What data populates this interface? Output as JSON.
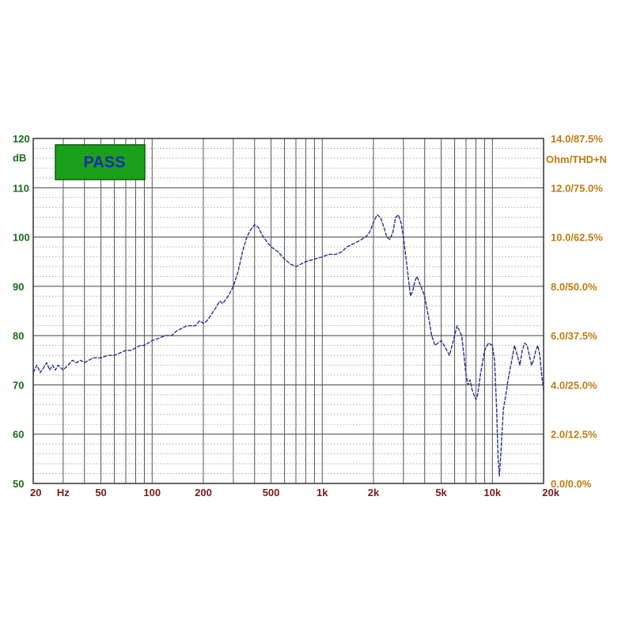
{
  "chart_data": {
    "type": "line",
    "x_scale": "log",
    "xlim": [
      20,
      20000
    ],
    "ylim": [
      50,
      120
    ],
    "y2lim": [
      0,
      14
    ],
    "grid": true,
    "pass_badge": "PASS",
    "left_axis": {
      "unit": "dB",
      "ticks": [
        {
          "value": 50,
          "label": "50"
        },
        {
          "value": 60,
          "label": "60"
        },
        {
          "value": 70,
          "label": "70"
        },
        {
          "value": 80,
          "label": "80"
        },
        {
          "value": 90,
          "label": "90"
        },
        {
          "value": 100,
          "label": "100"
        },
        {
          "value": 110,
          "label": "110"
        },
        {
          "value": 120,
          "label": "120"
        }
      ]
    },
    "right_axis": {
      "unit": "Ohm/THD+N",
      "ticks": [
        {
          "value": 0,
          "label": "0.0/0.0%"
        },
        {
          "value": 2,
          "label": "2.0/12.5%"
        },
        {
          "value": 4,
          "label": "4.0/25.0%"
        },
        {
          "value": 6,
          "label": "6.0/37.5%"
        },
        {
          "value": 8,
          "label": "8.0/50.0%"
        },
        {
          "value": 10,
          "label": "10.0/62.5%"
        },
        {
          "value": 12,
          "label": "12.0/75.0%"
        },
        {
          "value": 14,
          "label": "14.0/87.5%"
        }
      ]
    },
    "x_axis": {
      "unit": "Hz",
      "unit_position": 30,
      "ticks": [
        {
          "value": 20,
          "label": "20"
        },
        {
          "value": 50,
          "label": "50"
        },
        {
          "value": 100,
          "label": "100"
        },
        {
          "value": 200,
          "label": "200"
        },
        {
          "value": 500,
          "label": "500"
        },
        {
          "value": 1000,
          "label": "1k"
        },
        {
          "value": 2000,
          "label": "2k"
        },
        {
          "value": 5000,
          "label": "5k"
        },
        {
          "value": 10000,
          "label": "10k"
        },
        {
          "value": 20000,
          "label": "20k"
        }
      ]
    },
    "colors": {
      "line": "#2a2f8a",
      "grid": "#555555",
      "left_ticks": "#1a6b1a",
      "right_ticks": "#c07a10",
      "bottom_ticks": "#7a1a1a",
      "badge_fill": "#1aa01a",
      "badge_text": "#1a2bb0"
    },
    "series": [
      {
        "points": [
          [
            20,
            72.5
          ],
          [
            21,
            74
          ],
          [
            22,
            72.5
          ],
          [
            23,
            73.5
          ],
          [
            24,
            74.5
          ],
          [
            25,
            73
          ],
          [
            26,
            74
          ],
          [
            27,
            73
          ],
          [
            28,
            74
          ],
          [
            30,
            73
          ],
          [
            32,
            74
          ],
          [
            34,
            75
          ],
          [
            36,
            74.5
          ],
          [
            38,
            75
          ],
          [
            40,
            74.5
          ],
          [
            45,
            75.5
          ],
          [
            50,
            75.5
          ],
          [
            55,
            76
          ],
          [
            60,
            76
          ],
          [
            65,
            76.5
          ],
          [
            70,
            77
          ],
          [
            75,
            77
          ],
          [
            80,
            77.5
          ],
          [
            85,
            78
          ],
          [
            90,
            78
          ],
          [
            100,
            79
          ],
          [
            110,
            79.5
          ],
          [
            120,
            80
          ],
          [
            130,
            80
          ],
          [
            140,
            81
          ],
          [
            150,
            81.5
          ],
          [
            160,
            82
          ],
          [
            170,
            82
          ],
          [
            180,
            82
          ],
          [
            190,
            83
          ],
          [
            200,
            82.5
          ],
          [
            210,
            83
          ],
          [
            220,
            84
          ],
          [
            240,
            86
          ],
          [
            250,
            87
          ],
          [
            260,
            86.5
          ],
          [
            280,
            88
          ],
          [
            300,
            90
          ],
          [
            320,
            93
          ],
          [
            340,
            97
          ],
          [
            360,
            100
          ],
          [
            380,
            101.5
          ],
          [
            400,
            102.5
          ],
          [
            420,
            102
          ],
          [
            450,
            100
          ],
          [
            500,
            98
          ],
          [
            550,
            97
          ],
          [
            600,
            95.5
          ],
          [
            650,
            94.5
          ],
          [
            700,
            94
          ],
          [
            750,
            94.5
          ],
          [
            800,
            95
          ],
          [
            900,
            95.5
          ],
          [
            1000,
            96
          ],
          [
            1100,
            96.5
          ],
          [
            1200,
            96.5
          ],
          [
            1300,
            97
          ],
          [
            1400,
            98
          ],
          [
            1500,
            98.5
          ],
          [
            1600,
            99
          ],
          [
            1700,
            99.5
          ],
          [
            1800,
            100
          ],
          [
            1900,
            101
          ],
          [
            2000,
            103
          ],
          [
            2100,
            104.5
          ],
          [
            2200,
            104
          ],
          [
            2300,
            102
          ],
          [
            2400,
            100
          ],
          [
            2500,
            99.5
          ],
          [
            2600,
            101
          ],
          [
            2700,
            104
          ],
          [
            2800,
            104.5
          ],
          [
            2900,
            103
          ],
          [
            3000,
            100
          ],
          [
            3100,
            96
          ],
          [
            3200,
            92
          ],
          [
            3300,
            88
          ],
          [
            3400,
            89
          ],
          [
            3500,
            91
          ],
          [
            3600,
            92
          ],
          [
            3700,
            91
          ],
          [
            3800,
            90
          ],
          [
            4000,
            88
          ],
          [
            4200,
            84
          ],
          [
            4400,
            80
          ],
          [
            4600,
            78
          ],
          [
            4800,
            78.5
          ],
          [
            5000,
            79
          ],
          [
            5200,
            78
          ],
          [
            5400,
            77
          ],
          [
            5600,
            76
          ],
          [
            5800,
            78
          ],
          [
            6000,
            80
          ],
          [
            6200,
            82
          ],
          [
            6400,
            81
          ],
          [
            6600,
            80
          ],
          [
            6800,
            76
          ],
          [
            7000,
            72
          ],
          [
            7200,
            70
          ],
          [
            7400,
            71
          ],
          [
            7600,
            69
          ],
          [
            8000,
            67
          ],
          [
            8200,
            68
          ],
          [
            8500,
            72
          ],
          [
            9000,
            77
          ],
          [
            9500,
            78.5
          ],
          [
            10000,
            78
          ],
          [
            10300,
            75
          ],
          [
            10600,
            65
          ],
          [
            10800,
            55
          ],
          [
            11000,
            51.5
          ],
          [
            11300,
            58
          ],
          [
            11600,
            65
          ],
          [
            12000,
            68
          ],
          [
            12500,
            72
          ],
          [
            13000,
            75
          ],
          [
            13500,
            78
          ],
          [
            14000,
            76
          ],
          [
            14500,
            74
          ],
          [
            15000,
            77
          ],
          [
            15500,
            78.5
          ],
          [
            16000,
            78
          ],
          [
            16500,
            76
          ],
          [
            17000,
            74
          ],
          [
            17500,
            75
          ],
          [
            18000,
            77
          ],
          [
            18500,
            78
          ],
          [
            19000,
            76
          ],
          [
            19500,
            72
          ],
          [
            20000,
            69
          ]
        ]
      }
    ]
  }
}
